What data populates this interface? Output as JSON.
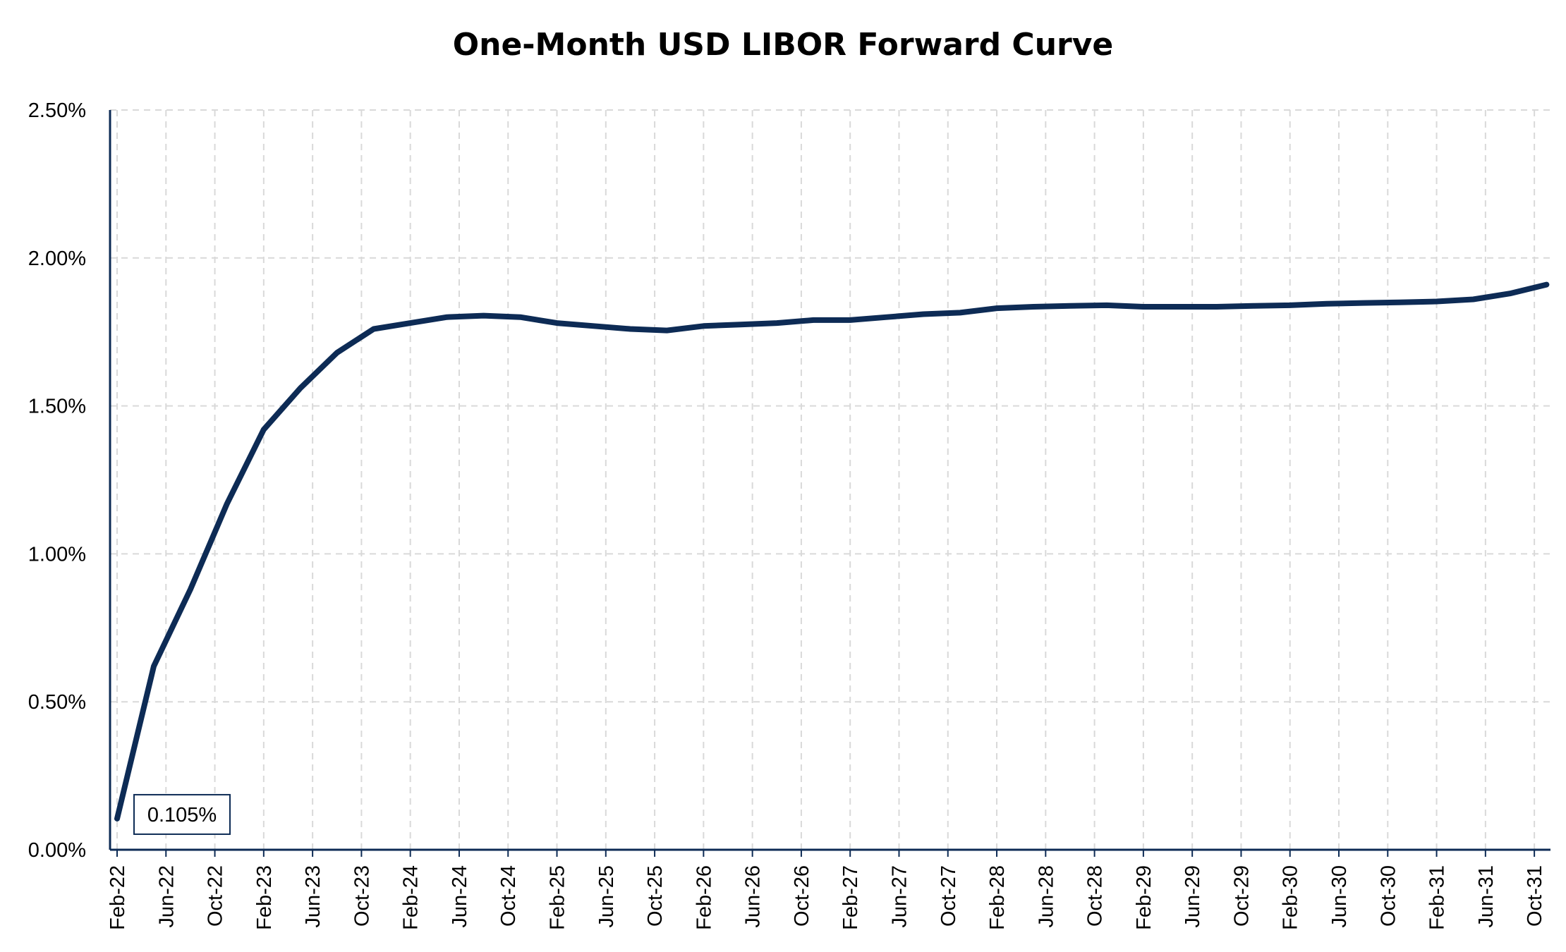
{
  "chart_data": {
    "type": "line",
    "title": "One-Month USD LIBOR Forward Curve",
    "xlabel": "",
    "ylabel": "",
    "ylim": [
      0,
      0.025
    ],
    "y_ticks": [
      "0.00%",
      "0.50%",
      "1.00%",
      "1.50%",
      "2.00%",
      "2.50%"
    ],
    "y_tick_values": [
      0,
      0.005,
      0.01,
      0.015,
      0.02,
      0.025
    ],
    "x_tick_labels": [
      "Feb-22",
      "Jun-22",
      "Oct-22",
      "Feb-23",
      "Jun-23",
      "Oct-23",
      "Feb-24",
      "Jun-24",
      "Oct-24",
      "Feb-25",
      "Jun-25",
      "Oct-25",
      "Feb-26",
      "Jun-26",
      "Oct-26",
      "Feb-27",
      "Jun-27",
      "Oct-27",
      "Feb-28",
      "Jun-28",
      "Oct-28",
      "Feb-29",
      "Jun-29",
      "Oct-29",
      "Feb-30",
      "Jun-30",
      "Oct-30",
      "Feb-31",
      "Jun-31",
      "Oct-31"
    ],
    "grid": true,
    "line_color": "#0d2b55",
    "grid_color": "#d9d9d9",
    "series": [
      {
        "x": [
          "2022-02",
          "2022-05",
          "2022-08",
          "2022-11",
          "2023-02",
          "2023-05",
          "2023-08",
          "2023-11",
          "2024-02",
          "2024-05",
          "2024-08",
          "2024-11",
          "2025-02",
          "2025-05",
          "2025-08",
          "2025-11",
          "2026-02",
          "2026-05",
          "2026-08",
          "2026-11",
          "2027-02",
          "2027-05",
          "2027-08",
          "2027-11",
          "2028-02",
          "2028-05",
          "2028-08",
          "2028-11",
          "2029-02",
          "2029-05",
          "2029-08",
          "2029-11",
          "2030-02",
          "2030-05",
          "2030-08",
          "2030-11",
          "2031-02",
          "2031-05",
          "2031-08",
          "2031-11"
        ],
        "values": [
          0.00105,
          0.0062,
          0.0088,
          0.0117,
          0.0142,
          0.0156,
          0.0168,
          0.0176,
          0.0178,
          0.018,
          0.01805,
          0.018,
          0.0178,
          0.0177,
          0.0176,
          0.01755,
          0.0177,
          0.01775,
          0.0178,
          0.0179,
          0.0179,
          0.018,
          0.0181,
          0.01815,
          0.0183,
          0.01835,
          0.01838,
          0.0184,
          0.01835,
          0.01835,
          0.01835,
          0.01838,
          0.0184,
          0.01845,
          0.01848,
          0.0185,
          0.01853,
          0.0186,
          0.0188,
          0.0191
        ]
      }
    ],
    "annotation": {
      "label": "0.105%",
      "x": "2022-02",
      "value": 0.00105
    }
  }
}
